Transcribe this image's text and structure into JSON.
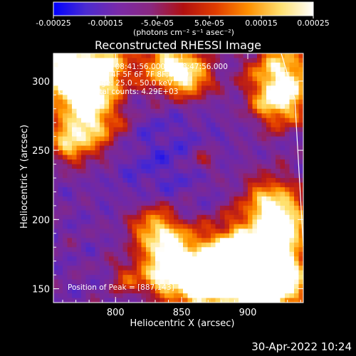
{
  "colorbar": {
    "ticks": [
      "-0.00025",
      "-0.00015",
      "-5.0e-05",
      "5.0e-05",
      "0.00015",
      "0.00025"
    ],
    "units": "(photons cm⁻² s⁻¹ asec⁻²)",
    "min": -0.00025,
    "max": 0.00025,
    "colors": [
      "#0000ff",
      "#4b2bd0",
      "#7a2aa8",
      "#8a2880",
      "#b11010",
      "#e03c00",
      "#ff9000",
      "#ffe070",
      "#ffffff"
    ]
  },
  "chart_data": {
    "type": "heatmap",
    "title": "Reconstructed RHESSI Image",
    "xlabel": "Heliocentric X (arcsec)",
    "ylabel": "Heliocentric Y (arcsec)",
    "xlim": [
      753,
      942
    ],
    "ylim": [
      140,
      320
    ],
    "xticks": [
      800,
      850,
      900
    ],
    "yticks": [
      150,
      200,
      250,
      300
    ],
    "x_tick_labels": [
      "800",
      "850",
      "900"
    ],
    "y_tick_labels": [
      "150",
      "200",
      "250",
      "300"
    ],
    "peak": [
      887,
      143
    ]
  },
  "info": {
    "line1": "1-Apr-2003 08:41:56.000 to 08:47:56.000",
    "line2": "Detectors: 3F 4F 5F 6F 7F 8F; Att 0",
    "line3": "Energy Range: 25.0 - 50.0 keV",
    "line4": "Clean     Total counts: 4.29E+03",
    "peak_label": "Position of Peak = [887,143]"
  },
  "timestamp": "30-Apr-2022 10:24"
}
